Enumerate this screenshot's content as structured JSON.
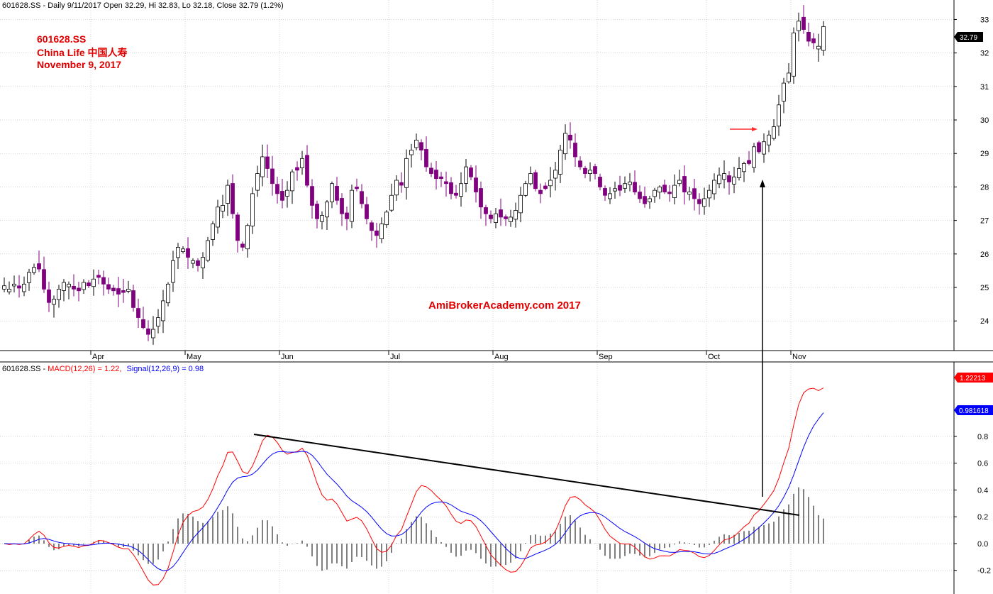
{
  "header": {
    "price_title": "601628.SS - Daily 9/11/2017 Open 32.29, Hi 32.83, Lo 32.18, Close 32.79 (1.2%)",
    "macd_symbol": "601628.SS - ",
    "macd_label": "MACD(12,26) = 1.22,",
    "signal_label": "Signal(12,26,9) = 0.98"
  },
  "annotations": {
    "ticker": "601628.SS",
    "company": "China Life 中国人寿",
    "date": "November 9, 2017",
    "brand": "AmiBrokerAcademy.com  2017"
  },
  "badges": {
    "price_last": "32.79",
    "macd_last": "1.22213",
    "signal_last": "0.981618"
  },
  "colors": {
    "bull_body": "#ffffff",
    "bear_body": "#800080",
    "macd_line": "#ff0000",
    "signal_line": "#0000ff",
    "histogram": "#000000",
    "arrow_red": "#ff0000",
    "badge_price": "#000000",
    "badge_macd": "#ff0000",
    "badge_signal": "#0000ff"
  },
  "chart_data": [
    {
      "type": "candlestick",
      "ylim": [
        23.2,
        33.2
      ],
      "y_ticks": [
        24,
        25,
        26,
        27,
        28,
        29,
        30,
        31,
        32,
        33
      ],
      "x_ticks": [
        "Apr",
        "May",
        "Jun",
        "Jul",
        "Aug",
        "Sep",
        "Oct",
        "Nov"
      ],
      "grid": true,
      "close": [
        25.05,
        24.95,
        25.1,
        24.98,
        25.1,
        25.45,
        25.6,
        25.55,
        24.95,
        24.55,
        24.65,
        24.95,
        25.15,
        25.1,
        24.95,
        24.9,
        25.15,
        25.05,
        25.25,
        25.3,
        25.1,
        24.95,
        24.9,
        24.8,
        24.85,
        24.95,
        24.4,
        24.1,
        23.8,
        23.6,
        23.75,
        24.1,
        24.6,
        25.1,
        25.8,
        26.2,
        26.15,
        25.9,
        25.8,
        25.65,
        25.9,
        26.4,
        26.9,
        27.4,
        27.45,
        28.05,
        27.2,
        26.4,
        26.2,
        26.85,
        27.8,
        28.4,
        28.9,
        28.55,
        28.1,
        27.8,
        27.6,
        27.9,
        28.45,
        28.5,
        28.85,
        28.05,
        27.45,
        27.05,
        27.15,
        27.55,
        28.1,
        27.6,
        27.2,
        27.05,
        27.9,
        27.95,
        27.5,
        27.05,
        26.7,
        26.55,
        26.9,
        27.25,
        27.75,
        28.2,
        28.05,
        28.85,
        29.1,
        29.4,
        29.1,
        28.6,
        28.4,
        28.25,
        28.25,
        28.1,
        27.8,
        27.75,
        28.1,
        28.6,
        28.3,
        27.85,
        27.4,
        27.2,
        27.05,
        27.2,
        27.1,
        27.05,
        27.1,
        27.3,
        27.75,
        28.1,
        28.4,
        27.95,
        27.8,
        27.95,
        28.2,
        28.5,
        29.1,
        29.6,
        29.4,
        28.9,
        28.6,
        28.4,
        28.5,
        28.4,
        28.0,
        27.75,
        27.8,
        27.95,
        27.9,
        28.1,
        28.15,
        27.85,
        27.65,
        27.5,
        27.65,
        27.9,
        28.0,
        27.85,
        27.8,
        28.05,
        28.2,
        27.85,
        27.85,
        27.65,
        27.5,
        27.65,
        27.9,
        28.2,
        28.35,
        28.4,
        28.15,
        28.3,
        28.55,
        28.7,
        28.7,
        29.2,
        29.05,
        29.35,
        29.55,
        29.8,
        30.45,
        31.1,
        31.4,
        32.6,
        32.95,
        32.7,
        32.35,
        32.3,
        32.2,
        32.79
      ],
      "last_price": 32.79
    },
    {
      "type": "line",
      "ylim": [
        -0.35,
        1.25
      ],
      "y_ticks": [
        -0.2,
        0.0,
        0.2,
        0.4,
        0.6,
        0.8
      ],
      "series": [
        {
          "name": "MACD(12,26)",
          "last": 1.22
        },
        {
          "name": "Signal(12,26,9)",
          "last": 0.98
        }
      ]
    }
  ]
}
